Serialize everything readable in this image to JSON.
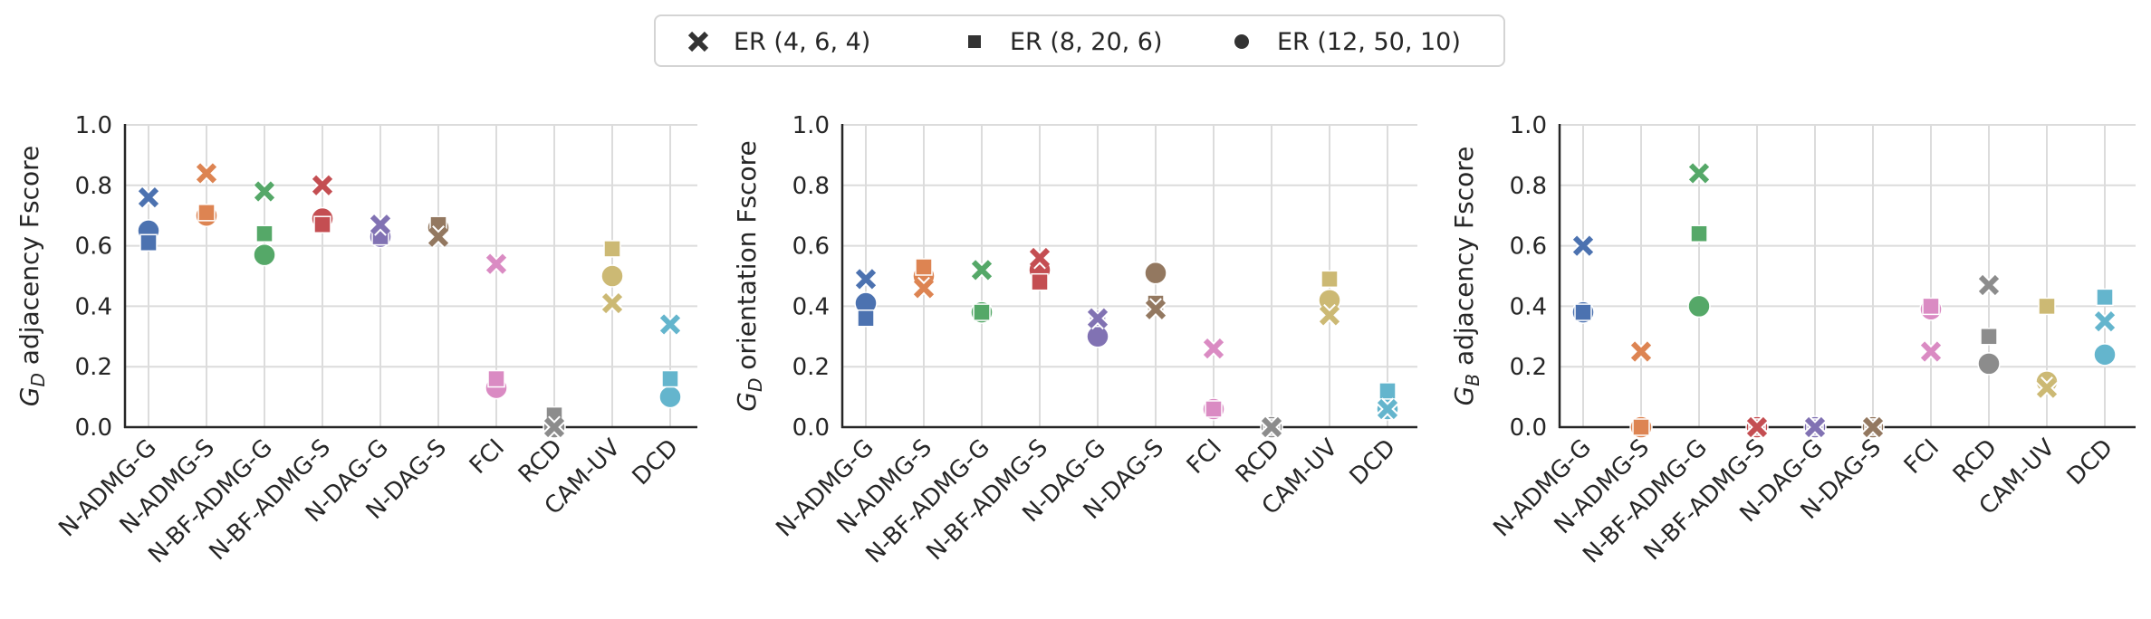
{
  "legend": {
    "items": [
      {
        "label": "ER (4, 6, 4)",
        "marker": "x"
      },
      {
        "label": "ER (8, 20, 6)",
        "marker": "square"
      },
      {
        "label": "ER (12, 50, 10)",
        "marker": "circle"
      }
    ],
    "placement": "top-center"
  },
  "colors": {
    "N-ADMG-G": "#4c72b0",
    "N-ADMG-S": "#dd8452",
    "N-BF-ADMG-G": "#55a868",
    "N-BF-ADMG-S": "#c44e52",
    "N-DAG-G": "#8172b3",
    "N-DAG-S": "#937860",
    "FCI": "#da8bc3",
    "RCD": "#8c8c8c",
    "CAM-UV": "#ccb974",
    "DCD": "#64b5cd",
    "legend_marker": "#333333",
    "grid": "#dcdcdc"
  },
  "chart_data": [
    {
      "type": "scatter",
      "ylabel_prefix": "G",
      "ylabel_sub": "D",
      "ylabel_rest": " adjacency Fscore",
      "categories": [
        "N-ADMG-G",
        "N-ADMG-S",
        "N-BF-ADMG-G",
        "N-BF-ADMG-S",
        "N-DAG-G",
        "N-DAG-S",
        "FCI",
        "RCD",
        "CAM-UV",
        "DCD"
      ],
      "ylim": [
        0,
        1
      ],
      "yticks": [
        "0.0",
        "0.2",
        "0.4",
        "0.6",
        "0.8",
        "1.0"
      ],
      "grid": true,
      "series": [
        {
          "name": "ER (4, 6, 4)",
          "marker": "x",
          "values": [
            0.76,
            0.84,
            0.78,
            0.8,
            0.67,
            0.63,
            0.54,
            0.0,
            0.41,
            0.34
          ]
        },
        {
          "name": "ER (8, 20, 6)",
          "marker": "square",
          "values": [
            0.61,
            0.71,
            0.64,
            0.67,
            0.63,
            0.67,
            0.16,
            0.04,
            0.59,
            0.16
          ]
        },
        {
          "name": "ER (12, 50, 10)",
          "marker": "circle",
          "values": [
            0.65,
            0.7,
            0.57,
            0.69,
            0.63,
            0.66,
            0.13,
            0.0,
            0.5,
            0.1
          ]
        }
      ]
    },
    {
      "type": "scatter",
      "ylabel_prefix": "G",
      "ylabel_sub": "D",
      "ylabel_rest": " orientation Fscore",
      "categories": [
        "N-ADMG-G",
        "N-ADMG-S",
        "N-BF-ADMG-G",
        "N-BF-ADMG-S",
        "N-DAG-G",
        "N-DAG-S",
        "FCI",
        "RCD",
        "CAM-UV",
        "DCD"
      ],
      "ylim": [
        0,
        1
      ],
      "yticks": [
        "0.0",
        "0.2",
        "0.4",
        "0.6",
        "0.8",
        "1.0"
      ],
      "grid": true,
      "series": [
        {
          "name": "ER (4, 6, 4)",
          "marker": "x",
          "values": [
            0.49,
            0.46,
            0.52,
            0.56,
            0.36,
            0.39,
            0.26,
            0.0,
            0.37,
            0.06
          ]
        },
        {
          "name": "ER (8, 20, 6)",
          "marker": "square",
          "values": [
            0.36,
            0.53,
            0.38,
            0.48,
            0.36,
            0.41,
            0.06,
            0.0,
            0.49,
            0.12
          ]
        },
        {
          "name": "ER (12, 50, 10)",
          "marker": "circle",
          "values": [
            0.41,
            0.5,
            0.38,
            0.52,
            0.3,
            0.51,
            0.06,
            0.0,
            0.42,
            0.06
          ]
        }
      ]
    },
    {
      "type": "scatter",
      "ylabel_prefix": "G",
      "ylabel_sub": "B",
      "ylabel_rest": " adjacency Fscore",
      "categories": [
        "N-ADMG-G",
        "N-ADMG-S",
        "N-BF-ADMG-G",
        "N-BF-ADMG-S",
        "N-DAG-G",
        "N-DAG-S",
        "FCI",
        "RCD",
        "CAM-UV",
        "DCD"
      ],
      "ylim": [
        0,
        1
      ],
      "yticks": [
        "0.0",
        "0.2",
        "0.4",
        "0.6",
        "0.8",
        "1.0"
      ],
      "grid": true,
      "series": [
        {
          "name": "ER (4, 6, 4)",
          "marker": "x",
          "values": [
            0.6,
            0.25,
            0.84,
            0.0,
            0.0,
            0.0,
            0.25,
            0.47,
            0.13,
            0.35
          ]
        },
        {
          "name": "ER (8, 20, 6)",
          "marker": "square",
          "values": [
            0.38,
            0.0,
            0.64,
            0.0,
            0.0,
            0.0,
            0.4,
            0.3,
            0.4,
            0.43
          ]
        },
        {
          "name": "ER (12, 50, 10)",
          "marker": "circle",
          "values": [
            0.38,
            0.0,
            0.4,
            0.0,
            0.0,
            0.0,
            0.39,
            0.21,
            0.15,
            0.24
          ]
        }
      ]
    }
  ]
}
